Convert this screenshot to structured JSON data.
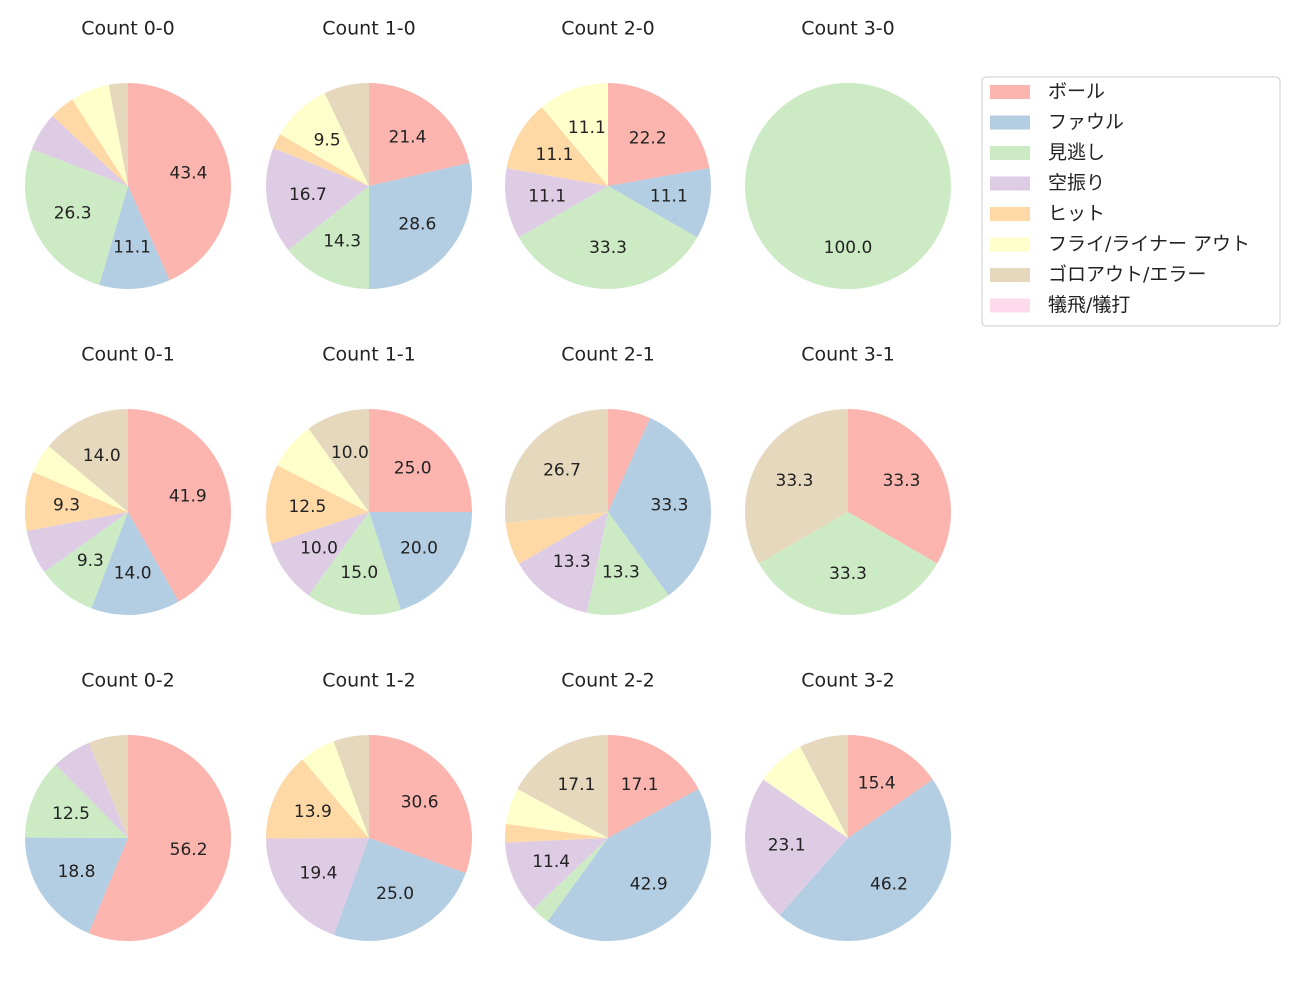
{
  "legend": {
    "labels": [
      "ボール",
      "ファウル",
      "見逃し",
      "空振り",
      "ヒット",
      "フライ/ライナー アウト",
      "ゴロアウト/エラー",
      "犠飛/犠打"
    ],
    "colors": [
      "#fbb4ae",
      "#b3cde3",
      "#ccebc5",
      "#decbe4",
      "#fed9a6",
      "#ffffcc",
      "#e5d8bd",
      "#fddaec"
    ]
  },
  "chart_data": [
    {
      "type": "pie",
      "title": "Count 0-0",
      "values": [
        43.4,
        11.1,
        26.3,
        6.1,
        4.0,
        6.1,
        3.0,
        0
      ],
      "value_labels": [
        "43.4",
        "11.1",
        "26.3",
        null,
        null,
        null,
        null,
        null
      ]
    },
    {
      "type": "pie",
      "title": "Count 1-0",
      "values": [
        21.4,
        28.6,
        14.3,
        16.7,
        2.4,
        9.5,
        7.1,
        0
      ],
      "value_labels": [
        "21.4",
        "28.6",
        "14.3",
        "16.7",
        null,
        "9.5",
        null,
        null
      ]
    },
    {
      "type": "pie",
      "title": "Count 2-0",
      "values": [
        22.2,
        11.1,
        33.3,
        11.1,
        11.1,
        11.1,
        0,
        0
      ],
      "value_labels": [
        "22.2",
        "11.1",
        "33.3",
        "11.1",
        "11.1",
        "11.1",
        null,
        null
      ]
    },
    {
      "type": "pie",
      "title": "Count 3-0",
      "values": [
        0,
        0,
        100.0,
        0,
        0,
        0,
        0,
        0
      ],
      "value_labels": [
        null,
        null,
        "100.0",
        null,
        null,
        null,
        null,
        null
      ]
    },
    {
      "type": "pie",
      "title": "Count 0-1",
      "values": [
        41.9,
        14.0,
        9.3,
        7.0,
        9.3,
        4.7,
        14.0,
        0
      ],
      "value_labels": [
        "41.9",
        "14.0",
        "9.3",
        null,
        "9.3",
        null,
        "14.0",
        null
      ]
    },
    {
      "type": "pie",
      "title": "Count 1-1",
      "values": [
        25.0,
        20.0,
        15.0,
        10.0,
        12.5,
        7.5,
        10.0,
        0
      ],
      "value_labels": [
        "25.0",
        "20.0",
        "15.0",
        "10.0",
        "12.5",
        null,
        "10.0",
        null
      ]
    },
    {
      "type": "pie",
      "title": "Count 2-1",
      "values": [
        6.7,
        33.3,
        13.3,
        13.3,
        6.7,
        0,
        26.7,
        0
      ],
      "value_labels": [
        null,
        "33.3",
        "13.3",
        "13.3",
        null,
        null,
        "26.7",
        null
      ]
    },
    {
      "type": "pie",
      "title": "Count 3-1",
      "values": [
        33.3,
        0,
        33.3,
        0,
        0,
        0,
        33.3,
        0
      ],
      "value_labels": [
        "33.3",
        null,
        "33.3",
        null,
        null,
        null,
        "33.3",
        null
      ]
    },
    {
      "type": "pie",
      "title": "Count 0-2",
      "values": [
        56.2,
        18.8,
        12.5,
        6.2,
        0,
        0,
        6.2,
        0
      ],
      "value_labels": [
        "56.2",
        "18.8",
        "12.5",
        null,
        null,
        null,
        null,
        null
      ]
    },
    {
      "type": "pie",
      "title": "Count 1-2",
      "values": [
        30.6,
        25.0,
        0,
        19.4,
        13.9,
        5.6,
        5.6,
        0
      ],
      "value_labels": [
        "30.6",
        "25.0",
        null,
        "19.4",
        "13.9",
        null,
        null,
        null
      ]
    },
    {
      "type": "pie",
      "title": "Count 2-2",
      "values": [
        17.1,
        42.9,
        2.9,
        11.4,
        2.9,
        5.7,
        17.1,
        0
      ],
      "value_labels": [
        "17.1",
        "42.9",
        null,
        "11.4",
        null,
        null,
        "17.1",
        null
      ]
    },
    {
      "type": "pie",
      "title": "Count 3-2",
      "values": [
        15.4,
        46.2,
        0,
        23.1,
        0,
        7.7,
        7.7,
        0
      ],
      "value_labels": [
        "15.4",
        "46.2",
        null,
        "23.1",
        null,
        null,
        null,
        null
      ]
    }
  ]
}
